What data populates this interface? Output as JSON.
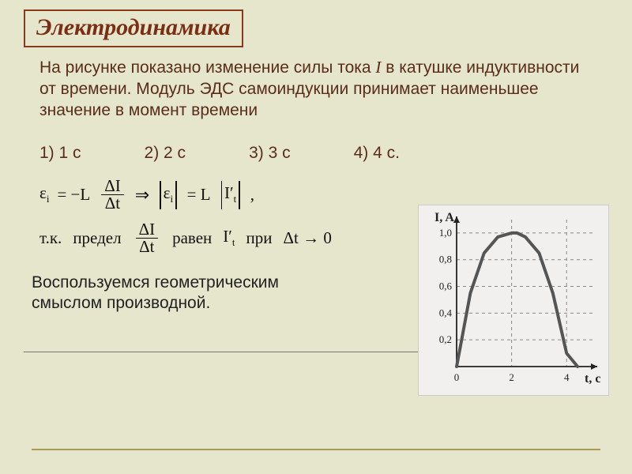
{
  "title": "Электродинамика",
  "problem_lines": [
    "На рисунке показано изменение силы тока ",
    " в катушке индуктивности от времени. Модуль ЭДС самоиндукции принимает наименьшее значение в момент времени"
  ],
  "options": [
    "1) 1 с",
    "2) 2 с",
    "3) 3 с",
    "4) 4 с."
  ],
  "formula": {
    "eps": "ε",
    "sub_i": "i",
    "eq": "= −L",
    "dI": "ΔI",
    "dt": "Δt",
    "implies": "⇒",
    "abs_eq": "= L",
    "Iprime": "I′",
    "sub_t": "t",
    "comma": ",",
    "tk": "т.к.",
    "limit": "предел",
    "raven": "равен",
    "pri": "при",
    "dt_to_0": "Δt → 0"
  },
  "note": "Воспользуемся геометрическим смыслом производной.",
  "chart": {
    "type": "line",
    "xlabel": "t, c",
    "ylabel": "I, A",
    "xlim": [
      0,
      5
    ],
    "ylim": [
      0,
      1.1
    ],
    "xticks": [
      0,
      2,
      4
    ],
    "yticks": [
      0.2,
      0.4,
      0.6,
      0.8,
      1.0
    ],
    "ytick_labels": [
      "0,2",
      "0,4",
      "0,6",
      "0,8",
      "1,0"
    ],
    "curve_x": [
      0,
      0.5,
      1,
      1.5,
      2,
      2.2,
      2.5,
      3,
      3.5,
      4,
      4.4
    ],
    "curve_y": [
      0,
      0.55,
      0.85,
      0.97,
      1.0,
      1.0,
      0.97,
      0.85,
      0.55,
      0.1,
      0
    ],
    "line_color": "#555555",
    "line_width": 4,
    "grid_color": "#888888",
    "axis_color": "#222222",
    "background_color": "#f2f0ee",
    "label_fontsize": 16,
    "tick_fontsize": 13
  },
  "colors": {
    "page_bg": "#e6e6cc",
    "text_main": "#5a2d1a",
    "title_border": "#8a3a1d",
    "rule": "#a89b57"
  }
}
